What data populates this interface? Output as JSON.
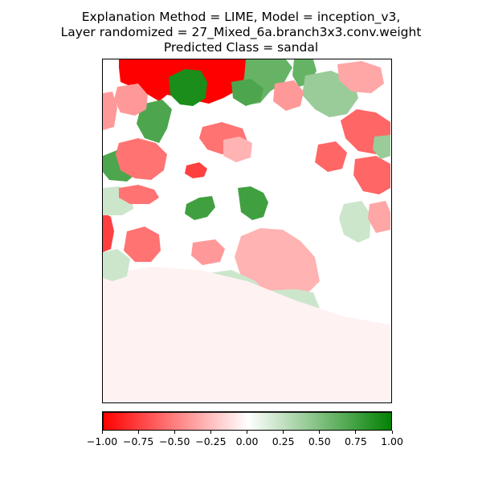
{
  "chart_data": {
    "type": "heatmap",
    "title_lines": [
      "Explanation Method = LIME, Model = inception_v3,",
      "Layer randomized = 27_Mixed_6a.branch3x3.conv.weight",
      "Predicted Class = sandal"
    ],
    "colorbar": {
      "min": -1.0,
      "max": 1.0,
      "colors": {
        "negative": "#ff0000",
        "zero": "#ffffff",
        "positive": "#008000"
      },
      "ticks": [
        -1.0,
        -0.75,
        -0.5,
        -0.25,
        0.0,
        0.25,
        0.5,
        0.75,
        1.0
      ],
      "tick_labels": [
        "−1.00",
        "−0.75",
        "−0.50",
        "−0.25",
        "0.00",
        "0.25",
        "0.50",
        "0.75",
        "1.00"
      ]
    },
    "segments": [
      {
        "label": "top-red-block",
        "value": -1.0
      },
      {
        "label": "top-dark-green",
        "value": 0.9
      },
      {
        "label": "top-right-green",
        "value": 0.6
      },
      {
        "label": "upper-left-green",
        "value": 0.7
      },
      {
        "label": "red-small-center",
        "value": -0.75
      },
      {
        "label": "mid-dark-green",
        "value": 0.75
      },
      {
        "label": "center-pink",
        "value": -0.3
      },
      {
        "label": "lower-light-green",
        "value": 0.2
      },
      {
        "label": "right-green",
        "value": 0.4
      },
      {
        "label": "right-red",
        "value": -0.6
      },
      {
        "label": "left-red",
        "value": -0.55
      },
      {
        "label": "top-left-pink",
        "value": -0.4
      },
      {
        "label": "top-right-pink",
        "value": -0.35
      },
      {
        "label": "bottom-faint",
        "value": -0.05
      }
    ]
  }
}
